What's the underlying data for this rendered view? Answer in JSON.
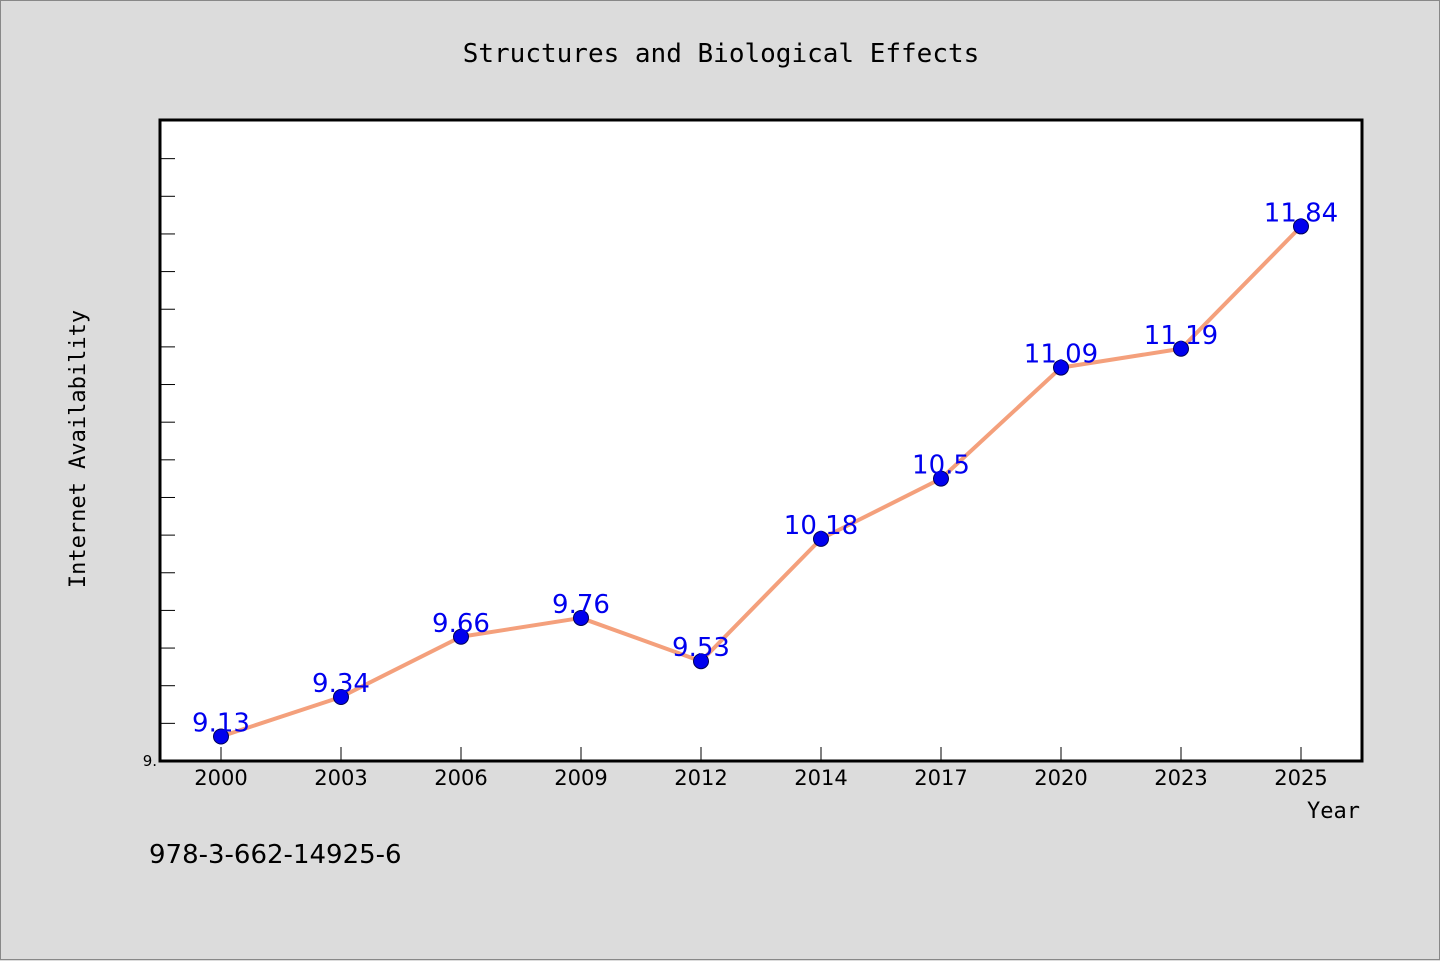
{
  "chart_data": {
    "type": "line",
    "title": "Structures and Biological Effects",
    "xlabel": "Year",
    "ylabel": "Internet Availability",
    "categories": [
      "2000",
      "2003",
      "2006",
      "2009",
      "2012",
      "2014",
      "2017",
      "2020",
      "2023",
      "2025"
    ],
    "series": [
      {
        "values": [
          9.13,
          9.34,
          9.66,
          9.76,
          9.53,
          10.18,
          10.5,
          11.09,
          11.19,
          11.84
        ],
        "labels": [
          "9.13",
          "9.34",
          "9.66",
          "9.76",
          "9.53",
          "10.18",
          "10.5",
          "11.09",
          "11.19",
          "11.84"
        ],
        "line_color": "#f4a07c",
        "marker_color": "#0000ee",
        "label_color": "#0000ee"
      }
    ],
    "ylim": [
      9.0,
      12.4
    ],
    "y_tick_labels": [
      "9."
    ],
    "grid": false,
    "legend": "none"
  },
  "annotation": "978-3-662-14925-6",
  "colors": {
    "background": "#dcdcdc",
    "plot_background": "#ffffff",
    "axis": "#000000"
  }
}
